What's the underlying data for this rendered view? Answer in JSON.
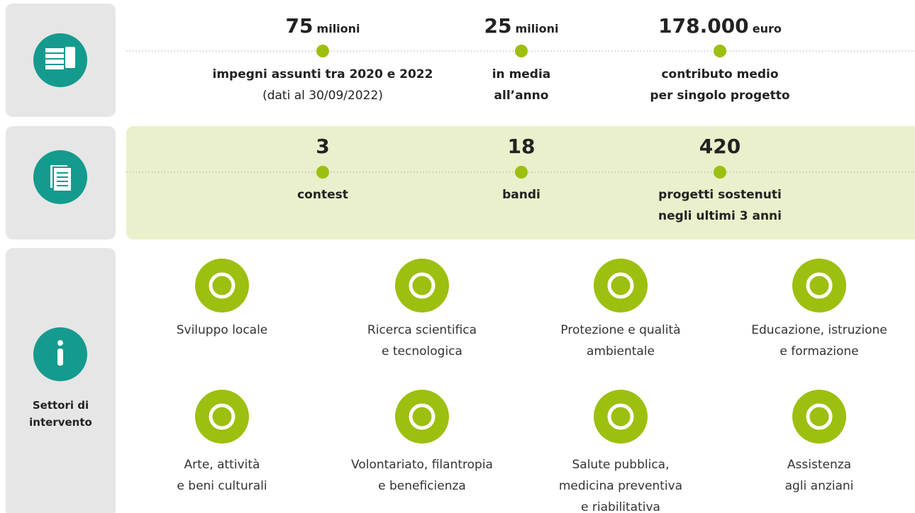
{
  "funding": [
    {
      "number": "75",
      "unit": "milioni",
      "label": [
        "impegni assunti tra 2020 e 2022"
      ],
      "note": "(dati al 30/09/2022)"
    },
    {
      "number": "25",
      "unit": "milioni",
      "label": [
        "in media",
        "all’anno"
      ]
    },
    {
      "number": "178.000",
      "unit": "euro",
      "label": [
        "contributo medio",
        "per singolo progetto"
      ]
    }
  ],
  "calls": [
    {
      "number": "3",
      "label": [
        "contest"
      ]
    },
    {
      "number": "18",
      "label": [
        "bandi"
      ]
    },
    {
      "number": "420",
      "label": [
        "progetti sostenuti",
        "negli ultimi 3 anni"
      ]
    }
  ],
  "sectors": {
    "title": [
      "Settori di",
      "intervento"
    ],
    "items": [
      {
        "label": [
          "Sviluppo locale"
        ]
      },
      {
        "label": [
          "Ricerca scientifica",
          "e tecnologica"
        ]
      },
      {
        "label": [
          "Protezione e qualità",
          "ambientale"
        ]
      },
      {
        "label": [
          "Educazione, istruzione",
          "e formazione"
        ]
      },
      {
        "label": [
          "Arte, attività",
          "e beni culturali"
        ]
      },
      {
        "label": [
          "Volontariato, filantropia",
          "e beneficienza"
        ]
      },
      {
        "label": [
          "Salute pubblica,",
          "medicina preventiva",
          "e riabilitativa"
        ]
      },
      {
        "label": [
          "Assistenza",
          "agli anziani"
        ]
      }
    ]
  }
}
